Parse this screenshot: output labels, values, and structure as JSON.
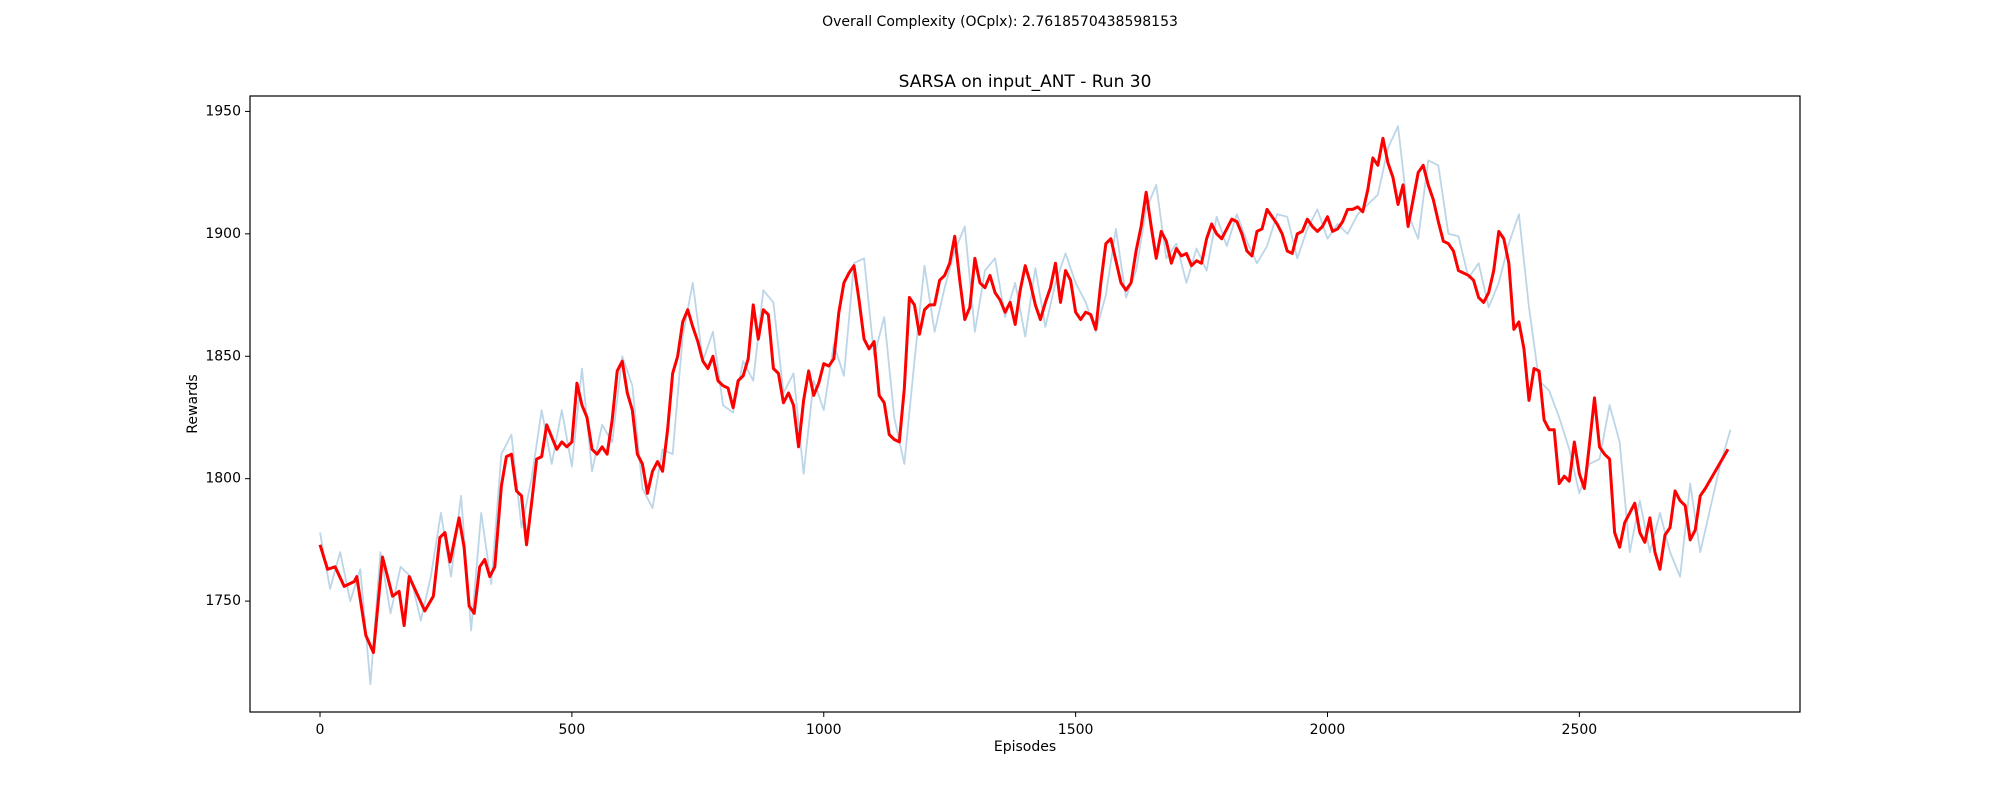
{
  "chart_data": {
    "type": "line",
    "annotation": "Overall Complexity (OCplx): 2.7618570438598153",
    "annotation_color": "red",
    "title": "SARSA on input_ANT - Run 30",
    "xlabel": "Episodes",
    "ylabel": "Rewards",
    "xlim": [
      -139,
      2938
    ],
    "ylim": [
      1704.7,
      1956.3
    ],
    "xticks": [
      0,
      500,
      1000,
      1500,
      2000,
      2500
    ],
    "yticks": [
      1750,
      1800,
      1850,
      1900,
      1950
    ],
    "grid": false,
    "series": [
      {
        "color": "#bcd6e8",
        "linewidth": 1.8,
        "x": [
          0,
          20,
          40,
          60,
          80,
          100,
          120,
          140,
          160,
          180,
          200,
          220,
          240,
          260,
          280,
          300,
          320,
          340,
          360,
          380,
          400,
          420,
          440,
          460,
          480,
          500,
          520,
          540,
          560,
          580,
          600,
          620,
          640,
          660,
          680,
          700,
          720,
          740,
          760,
          780,
          800,
          820,
          840,
          860,
          880,
          900,
          920,
          940,
          960,
          980,
          1000,
          1020,
          1040,
          1060,
          1080,
          1100,
          1120,
          1140,
          1160,
          1180,
          1200,
          1220,
          1240,
          1260,
          1280,
          1300,
          1320,
          1340,
          1360,
          1380,
          1400,
          1420,
          1440,
          1460,
          1480,
          1500,
          1520,
          1540,
          1560,
          1580,
          1600,
          1620,
          1640,
          1660,
          1680,
          1700,
          1720,
          1740,
          1760,
          1780,
          1800,
          1820,
          1840,
          1860,
          1880,
          1900,
          1920,
          1940,
          1960,
          1980,
          2000,
          2020,
          2040,
          2060,
          2080,
          2100,
          2120,
          2140,
          2160,
          2180,
          2200,
          2220,
          2240,
          2260,
          2280,
          2300,
          2320,
          2340,
          2360,
          2380,
          2400,
          2420,
          2440,
          2460,
          2480,
          2500,
          2520,
          2540,
          2560,
          2580,
          2600,
          2620,
          2640,
          2660,
          2680,
          2700,
          2720,
          2740,
          2760,
          2780,
          2800
        ],
        "values": [
          1778,
          1755,
          1770,
          1750,
          1763,
          1716,
          1770,
          1745,
          1764,
          1760,
          1742,
          1760,
          1786,
          1760,
          1793,
          1738,
          1786,
          1757,
          1810,
          1818,
          1780,
          1800,
          1828,
          1806,
          1828,
          1805,
          1845,
          1803,
          1822,
          1815,
          1850,
          1838,
          1796,
          1788,
          1812,
          1810,
          1858,
          1880,
          1848,
          1860,
          1830,
          1827,
          1848,
          1840,
          1877,
          1872,
          1835,
          1843,
          1802,
          1840,
          1828,
          1855,
          1842,
          1888,
          1890,
          1850,
          1866,
          1825,
          1806,
          1848,
          1887,
          1860,
          1878,
          1893,
          1903,
          1860,
          1885,
          1890,
          1866,
          1880,
          1858,
          1886,
          1862,
          1880,
          1892,
          1880,
          1872,
          1860,
          1875,
          1902,
          1874,
          1885,
          1910,
          1920,
          1890,
          1896,
          1880,
          1894,
          1885,
          1907,
          1895,
          1908,
          1897,
          1888,
          1895,
          1908,
          1907,
          1890,
          1902,
          1910,
          1898,
          1904,
          1900,
          1908,
          1912,
          1916,
          1935,
          1944,
          1908,
          1898,
          1930,
          1928,
          1900,
          1899,
          1882,
          1888,
          1870,
          1880,
          1896,
          1908,
          1870,
          1840,
          1836,
          1825,
          1812,
          1794,
          1806,
          1808,
          1830,
          1815,
          1770,
          1791,
          1770,
          1786,
          1770,
          1760,
          1798,
          1770,
          1788,
          1806,
          1820
        ]
      },
      {
        "color": "red",
        "linewidth": 3,
        "x": [
          0,
          15,
          30,
          48,
          68,
          73,
          91,
          106,
          124,
          144,
          157,
          167,
          177,
          208,
          225,
          238,
          248,
          258,
          276,
          286,
          296,
          306,
          317,
          327,
          337,
          347,
          360,
          370,
          380,
          390,
          400,
          410,
          420,
          430,
          440,
          450,
          460,
          470,
          480,
          490,
          500,
          510,
          520,
          530,
          540,
          550,
          560,
          570,
          580,
          590,
          600,
          610,
          620,
          630,
          640,
          650,
          660,
          670,
          680,
          690,
          700,
          710,
          720,
          730,
          740,
          750,
          760,
          770,
          780,
          790,
          800,
          810,
          820,
          830,
          840,
          850,
          860,
          870,
          880,
          890,
          900,
          910,
          920,
          930,
          940,
          950,
          960,
          970,
          980,
          990,
          1000,
          1010,
          1020,
          1030,
          1040,
          1050,
          1060,
          1070,
          1080,
          1090,
          1100,
          1110,
          1120,
          1130,
          1140,
          1150,
          1160,
          1170,
          1180,
          1190,
          1200,
          1210,
          1220,
          1230,
          1240,
          1250,
          1260,
          1270,
          1280,
          1290,
          1300,
          1310,
          1320,
          1330,
          1340,
          1350,
          1360,
          1370,
          1380,
          1390,
          1400,
          1410,
          1420,
          1430,
          1440,
          1450,
          1460,
          1470,
          1480,
          1490,
          1500,
          1510,
          1520,
          1530,
          1540,
          1550,
          1560,
          1570,
          1580,
          1590,
          1600,
          1610,
          1620,
          1630,
          1640,
          1650,
          1660,
          1670,
          1680,
          1690,
          1700,
          1710,
          1720,
          1730,
          1740,
          1750,
          1760,
          1770,
          1780,
          1790,
          1800,
          1810,
          1820,
          1830,
          1840,
          1850,
          1860,
          1870,
          1880,
          1890,
          1900,
          1910,
          1920,
          1930,
          1940,
          1950,
          1960,
          1970,
          1980,
          1990,
          2000,
          2010,
          2020,
          2030,
          2040,
          2050,
          2060,
          2070,
          2080,
          2090,
          2100,
          2110,
          2120,
          2130,
          2140,
          2150,
          2160,
          2170,
          2180,
          2190,
          2200,
          2210,
          2220,
          2230,
          2240,
          2250,
          2260,
          2270,
          2280,
          2290,
          2300,
          2310,
          2320,
          2330,
          2340,
          2350,
          2360,
          2370,
          2380,
          2390,
          2400,
          2410,
          2420,
          2430,
          2440,
          2450,
          2460,
          2470,
          2480,
          2490,
          2500,
          2510,
          2520,
          2530,
          2540,
          2550,
          2560,
          2570,
          2580,
          2590,
          2600,
          2610,
          2620,
          2630,
          2640,
          2650,
          2660,
          2670,
          2680,
          2690,
          2700,
          2710,
          2720,
          2730,
          2740,
          2750,
          2795
        ],
        "values": [
          1773,
          1763,
          1764,
          1756,
          1758,
          1760,
          1736,
          1729,
          1768,
          1752,
          1754,
          1740,
          1760,
          1746,
          1752,
          1776,
          1778,
          1766,
          1784,
          1772,
          1748,
          1745,
          1764,
          1767,
          1760,
          1764,
          1797,
          1809,
          1810,
          1795,
          1793,
          1773,
          1790,
          1808,
          1809,
          1822,
          1817,
          1812,
          1815,
          1813,
          1815,
          1839,
          1830,
          1825,
          1812,
          1810,
          1813,
          1810,
          1824,
          1844,
          1848,
          1835,
          1828,
          1810,
          1806,
          1794,
          1803,
          1807,
          1803,
          1820,
          1843,
          1850,
          1864,
          1869,
          1862,
          1856,
          1848,
          1845,
          1850,
          1840,
          1838,
          1837,
          1829,
          1840,
          1842,
          1849,
          1871,
          1857,
          1869,
          1867,
          1845,
          1843,
          1831,
          1835,
          1830,
          1813,
          1832,
          1844,
          1834,
          1839,
          1847,
          1846,
          1849,
          1868,
          1880,
          1884,
          1887,
          1873,
          1857,
          1853,
          1856,
          1834,
          1831,
          1818,
          1816,
          1815,
          1837,
          1874,
          1871,
          1859,
          1869,
          1871,
          1871,
          1881,
          1883,
          1888,
          1899,
          1881,
          1865,
          1870,
          1890,
          1880,
          1878,
          1883,
          1876,
          1873,
          1868,
          1872,
          1863,
          1877,
          1887,
          1880,
          1871,
          1865,
          1872,
          1878,
          1888,
          1872,
          1885,
          1881,
          1868,
          1865,
          1868,
          1867,
          1861,
          1880,
          1896,
          1898,
          1889,
          1880,
          1877,
          1880,
          1893,
          1903,
          1917,
          1903,
          1890,
          1901,
          1897,
          1888,
          1894,
          1891,
          1892,
          1887,
          1889,
          1888,
          1898,
          1904,
          1900,
          1898,
          1902,
          1906,
          1905,
          1900,
          1893,
          1891,
          1901,
          1902,
          1910,
          1907,
          1904,
          1900,
          1893,
          1892,
          1900,
          1901,
          1906,
          1903,
          1901,
          1903,
          1907,
          1901,
          1902,
          1905,
          1910,
          1910,
          1911,
          1909,
          1918,
          1931,
          1928,
          1939,
          1929,
          1923,
          1912,
          1920,
          1903,
          1914,
          1925,
          1928,
          1920,
          1914,
          1905,
          1897,
          1896,
          1893,
          1885,
          1884,
          1883,
          1881,
          1874,
          1872,
          1876,
          1885,
          1901,
          1898,
          1888,
          1861,
          1864,
          1853,
          1832,
          1845,
          1844,
          1824,
          1820,
          1820,
          1798,
          1801,
          1799,
          1815,
          1802,
          1796,
          1814,
          1833,
          1813,
          1810,
          1808,
          1778,
          1772,
          1782,
          1786,
          1790,
          1778,
          1774,
          1784,
          1770,
          1763,
          1777,
          1780,
          1795,
          1791,
          1789,
          1775,
          1779,
          1793,
          1796,
          1812
        ]
      }
    ]
  }
}
